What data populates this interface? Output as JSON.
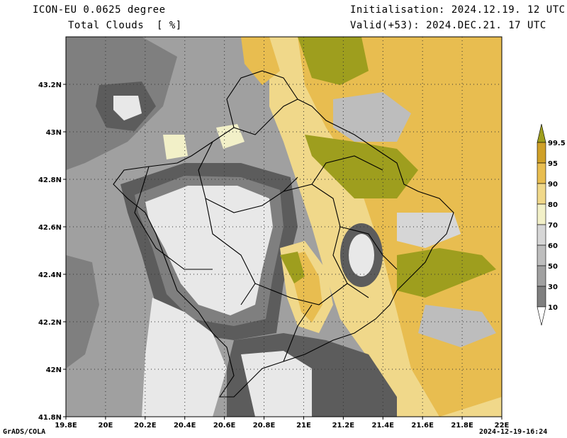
{
  "header": {
    "model": "ICON-EU 0.0625 degree",
    "variable": "Total Clouds  [ %]",
    "initialisation": "Initialisation: 2024.12.19. 12 UTC",
    "valid": "Valid(+53): 2024.DEC.21. 17 UTC"
  },
  "footer": {
    "left": "GrADS/COLA",
    "right": "2024-12-19-16:24"
  },
  "axes": {
    "x_ticks": [
      "19.8E",
      "20E",
      "20.2E",
      "20.4E",
      "20.6E",
      "20.8E",
      "21E",
      "21.2E",
      "21.4E",
      "21.6E",
      "21.8E",
      "22E"
    ],
    "x_values": [
      19.8,
      20.0,
      20.2,
      20.4,
      20.6,
      20.8,
      21.0,
      21.2,
      21.4,
      21.6,
      21.8,
      22.0
    ],
    "y_ticks": [
      "41.8N",
      "42N",
      "42.2N",
      "42.4N",
      "42.6N",
      "42.8N",
      "43N",
      "43.2N"
    ],
    "y_values": [
      41.8,
      42.0,
      42.2,
      42.4,
      42.6,
      42.8,
      43.0,
      43.2
    ],
    "lon_range": [
      19.8,
      22.0
    ],
    "lat_range": [
      41.8,
      43.4
    ]
  },
  "legend": {
    "labels": [
      "10",
      "30",
      "50",
      "60",
      "70",
      "80",
      "90",
      "95",
      "99.5"
    ],
    "colors": [
      "#5c5c5c",
      "#7f7f7f",
      "#a0a0a0",
      "#bdbdbd",
      "#d6d6d6",
      "#f2f0c8",
      "#f0d88a",
      "#e8bd50",
      "#cfa028",
      "#9e9e1e"
    ]
  },
  "colors": {
    "c_min": "#5c5c5c",
    "c_30": "#7f7f7f",
    "c_50": "#a0a0a0",
    "c_60": "#bdbdbd",
    "c_70": "#d6d6d6",
    "c_clear": "#e8e8e8",
    "c_80": "#f2f0c8",
    "c_90": "#f0d88a",
    "c_95": "#e8bd50",
    "c_99": "#cfa028",
    "c_max": "#9e9e1e"
  }
}
